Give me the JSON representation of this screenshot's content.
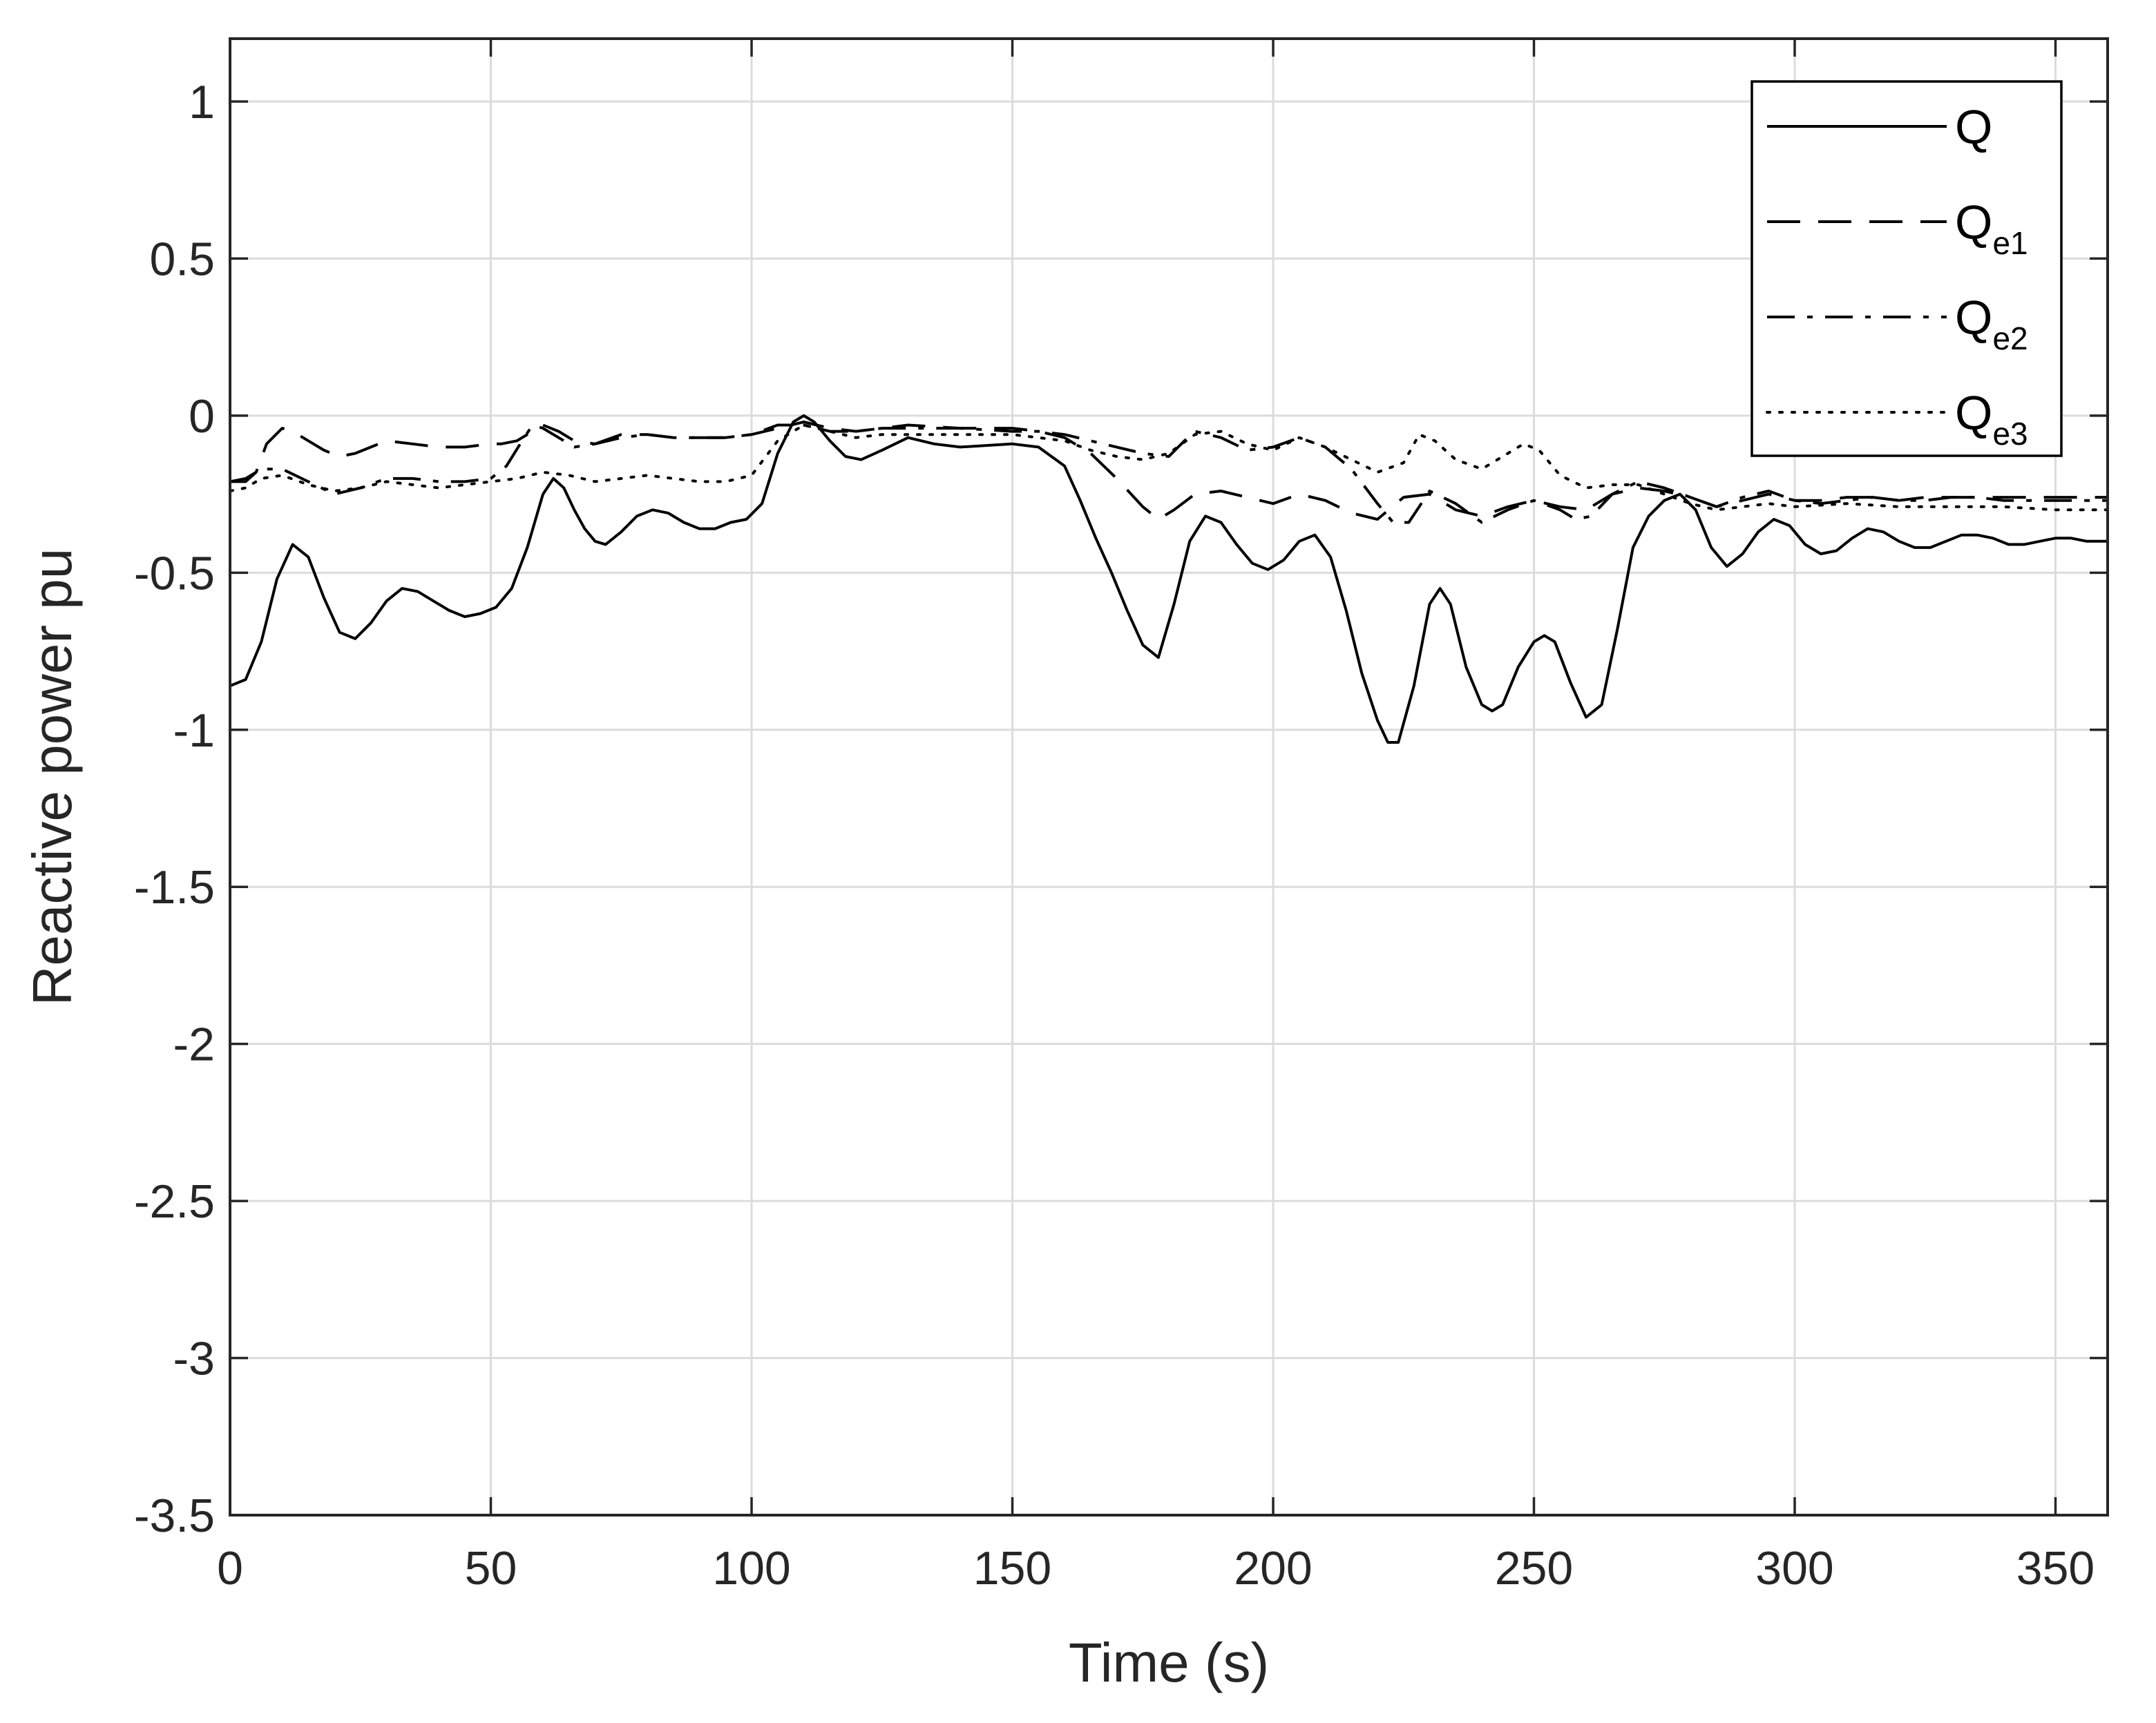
{
  "chart_data": {
    "type": "line",
    "title": "",
    "xlabel": "Time (s)",
    "ylabel": "Reactive power pu",
    "xlim": [
      0,
      360
    ],
    "ylim": [
      -3.5,
      1.2
    ],
    "xticks": [
      0,
      50,
      100,
      150,
      200,
      250,
      300,
      350
    ],
    "yticks": [
      1,
      0.5,
      0,
      -0.5,
      -1,
      -1.5,
      -2,
      -2.5,
      -3,
      -3.5
    ],
    "xtick_labels": [
      "0",
      "50",
      "100",
      "150",
      "200",
      "250",
      "300",
      "350"
    ],
    "ytick_labels": [
      "1",
      "0.5",
      "0",
      "-0.5",
      "-1",
      "-1.5",
      "-2",
      "-2.5",
      "-3",
      "-3.5"
    ],
    "grid": true,
    "legend_position": "top-right",
    "series": [
      {
        "name": "Q",
        "base": "Q",
        "sub": "",
        "style": "solid",
        "color": "#000000",
        "x": [
          0,
          3,
          6,
          9,
          12,
          15,
          18,
          21,
          24,
          27,
          30,
          33,
          36,
          39,
          42,
          45,
          48,
          51,
          54,
          57,
          60,
          62,
          64,
          66,
          68,
          70,
          72,
          75,
          78,
          81,
          84,
          87,
          90,
          93,
          96,
          99,
          102,
          105,
          108,
          110,
          112,
          115,
          118,
          121,
          125,
          130,
          135,
          140,
          150,
          155,
          160,
          163,
          166,
          169,
          172,
          175,
          178,
          181,
          184,
          187,
          190,
          193,
          196,
          199,
          202,
          205,
          208,
          211,
          214,
          217,
          220,
          222,
          224,
          227,
          230,
          232,
          234,
          237,
          240,
          242,
          244,
          247,
          250,
          252,
          254,
          257,
          260,
          263,
          266,
          269,
          272,
          275,
          278,
          281,
          284,
          287,
          290,
          293,
          296,
          299,
          302,
          305,
          308,
          311,
          314,
          317,
          320,
          323,
          326,
          329,
          332,
          335,
          338,
          341,
          344,
          347,
          350,
          353,
          356,
          360
        ],
        "y": [
          -0.86,
          -0.84,
          -0.72,
          -0.52,
          -0.41,
          -0.45,
          -0.58,
          -0.69,
          -0.71,
          -0.66,
          -0.59,
          -0.55,
          -0.56,
          -0.59,
          -0.62,
          -0.64,
          -0.63,
          -0.61,
          -0.55,
          -0.42,
          -0.25,
          -0.2,
          -0.23,
          -0.3,
          -0.36,
          -0.4,
          -0.41,
          -0.37,
          -0.32,
          -0.3,
          -0.31,
          -0.34,
          -0.36,
          -0.36,
          -0.34,
          -0.33,
          -0.28,
          -0.12,
          -0.02,
          0.0,
          -0.02,
          -0.08,
          -0.13,
          -0.14,
          -0.11,
          -0.07,
          -0.09,
          -0.1,
          -0.09,
          -0.1,
          -0.16,
          -0.27,
          -0.39,
          -0.5,
          -0.62,
          -0.73,
          -0.77,
          -0.6,
          -0.4,
          -0.32,
          -0.34,
          -0.41,
          -0.47,
          -0.49,
          -0.46,
          -0.4,
          -0.38,
          -0.45,
          -0.62,
          -0.82,
          -0.97,
          -1.04,
          -1.04,
          -0.86,
          -0.6,
          -0.55,
          -0.6,
          -0.8,
          -0.92,
          -0.94,
          -0.92,
          -0.8,
          -0.72,
          -0.7,
          -0.72,
          -0.85,
          -0.96,
          -0.92,
          -0.68,
          -0.42,
          -0.32,
          -0.27,
          -0.25,
          -0.3,
          -0.42,
          -0.48,
          -0.44,
          -0.37,
          -0.33,
          -0.35,
          -0.41,
          -0.44,
          -0.43,
          -0.39,
          -0.36,
          -0.37,
          -0.4,
          -0.42,
          -0.42,
          -0.4,
          -0.38,
          -0.38,
          -0.39,
          -0.41,
          -0.41,
          -0.4,
          -0.39,
          -0.39,
          -0.4,
          -0.4
        ]
      },
      {
        "name": "Qe1",
        "base": "Q",
        "sub": "e1",
        "style": "dashed",
        "color": "#000000",
        "x": [
          0,
          3,
          5,
          7,
          10,
          12,
          15,
          18,
          21,
          24,
          27,
          30,
          35,
          40,
          45,
          50,
          52,
          55,
          58,
          60,
          63,
          66,
          70,
          75,
          80,
          85,
          90,
          95,
          100,
          105,
          110,
          115,
          120,
          125,
          130,
          140,
          150,
          155,
          160,
          165,
          170,
          175,
          178,
          181,
          185,
          190,
          195,
          200,
          205,
          210,
          215,
          220,
          225,
          230,
          235,
          240,
          245,
          250,
          255,
          260,
          265,
          270,
          275,
          280,
          285,
          290,
          295,
          300,
          305,
          310,
          315,
          320,
          325,
          330,
          335,
          340,
          345,
          350,
          355,
          360
        ],
        "y": [
          -0.21,
          -0.21,
          -0.18,
          -0.09,
          -0.04,
          -0.05,
          -0.08,
          -0.11,
          -0.13,
          -0.12,
          -0.1,
          -0.08,
          -0.09,
          -0.1,
          -0.1,
          -0.09,
          -0.09,
          -0.08,
          -0.05,
          -0.03,
          -0.05,
          -0.08,
          -0.09,
          -0.06,
          -0.06,
          -0.07,
          -0.07,
          -0.07,
          -0.06,
          -0.04,
          -0.02,
          -0.04,
          -0.05,
          -0.04,
          -0.03,
          -0.04,
          -0.04,
          -0.05,
          -0.07,
          -0.12,
          -0.2,
          -0.29,
          -0.33,
          -0.3,
          -0.25,
          -0.24,
          -0.26,
          -0.28,
          -0.25,
          -0.27,
          -0.31,
          -0.33,
          -0.26,
          -0.25,
          -0.3,
          -0.32,
          -0.29,
          -0.27,
          -0.29,
          -0.3,
          -0.25,
          -0.23,
          -0.24,
          -0.26,
          -0.29,
          -0.27,
          -0.25,
          -0.27,
          -0.27,
          -0.26,
          -0.26,
          -0.27,
          -0.26,
          -0.26,
          -0.26,
          -0.26,
          -0.26,
          -0.26,
          -0.26,
          -0.26
        ]
      },
      {
        "name": "Qe2",
        "base": "Q",
        "sub": "e2",
        "style": "dashdot",
        "color": "#000000",
        "x": [
          0,
          3,
          6,
          10,
          15,
          20,
          25,
          30,
          35,
          40,
          45,
          50,
          53,
          56,
          58,
          60,
          63,
          66,
          70,
          75,
          80,
          85,
          90,
          95,
          100,
          105,
          110,
          115,
          120,
          125,
          130,
          140,
          150,
          155,
          160,
          165,
          170,
          175,
          180,
          183,
          185,
          190,
          195,
          200,
          205,
          210,
          215,
          220,
          223,
          226,
          230,
          235,
          240,
          245,
          250,
          255,
          258,
          261,
          265,
          270,
          275,
          280,
          285,
          290,
          295,
          300,
          305,
          310,
          315,
          320,
          325,
          330,
          335,
          340,
          345,
          350,
          355,
          360
        ],
        "y": [
          -0.21,
          -0.2,
          -0.17,
          -0.17,
          -0.21,
          -0.25,
          -0.23,
          -0.2,
          -0.2,
          -0.21,
          -0.21,
          -0.2,
          -0.16,
          -0.08,
          -0.03,
          -0.04,
          -0.07,
          -0.1,
          -0.09,
          -0.07,
          -0.06,
          -0.07,
          -0.07,
          -0.07,
          -0.06,
          -0.03,
          -0.03,
          -0.05,
          -0.05,
          -0.04,
          -0.04,
          -0.04,
          -0.05,
          -0.05,
          -0.06,
          -0.08,
          -0.1,
          -0.12,
          -0.13,
          -0.08,
          -0.05,
          -0.07,
          -0.11,
          -0.1,
          -0.07,
          -0.1,
          -0.17,
          -0.28,
          -0.34,
          -0.34,
          -0.24,
          -0.28,
          -0.34,
          -0.3,
          -0.27,
          -0.3,
          -0.33,
          -0.32,
          -0.25,
          -0.21,
          -0.23,
          -0.26,
          -0.29,
          -0.26,
          -0.24,
          -0.27,
          -0.28,
          -0.27,
          -0.26,
          -0.27,
          -0.27,
          -0.26,
          -0.26,
          -0.27,
          -0.27,
          -0.27,
          -0.27,
          -0.27
        ]
      },
      {
        "name": "Qe3",
        "base": "Q",
        "sub": "e3",
        "style": "dotted",
        "color": "#000000",
        "x": [
          0,
          3,
          6,
          10,
          15,
          20,
          25,
          30,
          35,
          40,
          45,
          50,
          55,
          60,
          65,
          70,
          75,
          80,
          85,
          90,
          95,
          100,
          105,
          110,
          115,
          120,
          125,
          130,
          140,
          150,
          160,
          165,
          170,
          175,
          180,
          185,
          190,
          195,
          200,
          205,
          210,
          215,
          220,
          225,
          228,
          231,
          235,
          240,
          245,
          248,
          251,
          255,
          260,
          265,
          270,
          275,
          280,
          285,
          290,
          295,
          300,
          310,
          320,
          330,
          340,
          350,
          360
        ],
        "y": [
          -0.24,
          -0.23,
          -0.2,
          -0.19,
          -0.22,
          -0.24,
          -0.23,
          -0.21,
          -0.22,
          -0.23,
          -0.22,
          -0.21,
          -0.2,
          -0.18,
          -0.19,
          -0.21,
          -0.2,
          -0.19,
          -0.2,
          -0.21,
          -0.21,
          -0.19,
          -0.08,
          -0.03,
          -0.05,
          -0.07,
          -0.06,
          -0.06,
          -0.06,
          -0.06,
          -0.08,
          -0.11,
          -0.13,
          -0.14,
          -0.12,
          -0.06,
          -0.05,
          -0.09,
          -0.11,
          -0.07,
          -0.1,
          -0.14,
          -0.18,
          -0.15,
          -0.06,
          -0.08,
          -0.14,
          -0.17,
          -0.12,
          -0.09,
          -0.11,
          -0.19,
          -0.23,
          -0.22,
          -0.22,
          -0.25,
          -0.28,
          -0.3,
          -0.29,
          -0.28,
          -0.29,
          -0.28,
          -0.29,
          -0.29,
          -0.29,
          -0.3,
          -0.3
        ]
      }
    ]
  }
}
